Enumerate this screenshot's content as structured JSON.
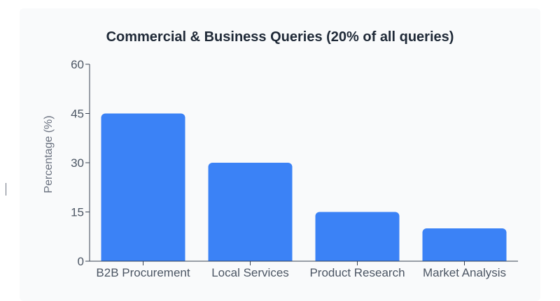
{
  "chart_data": {
    "type": "bar",
    "title": "Commercial & Business Queries (20% of all queries)",
    "xlabel": "",
    "ylabel": "Percentage (%)",
    "categories": [
      "B2B Procurement",
      "Local Services",
      "Product Research",
      "Market Analysis"
    ],
    "values": [
      45,
      30,
      15,
      10
    ],
    "ylim": [
      0,
      60
    ],
    "yticks": [
      0,
      15,
      30,
      45,
      60
    ],
    "colors": {
      "bar": "#3b82f6",
      "axis": "#374151"
    },
    "grid": false,
    "legend": "none"
  }
}
